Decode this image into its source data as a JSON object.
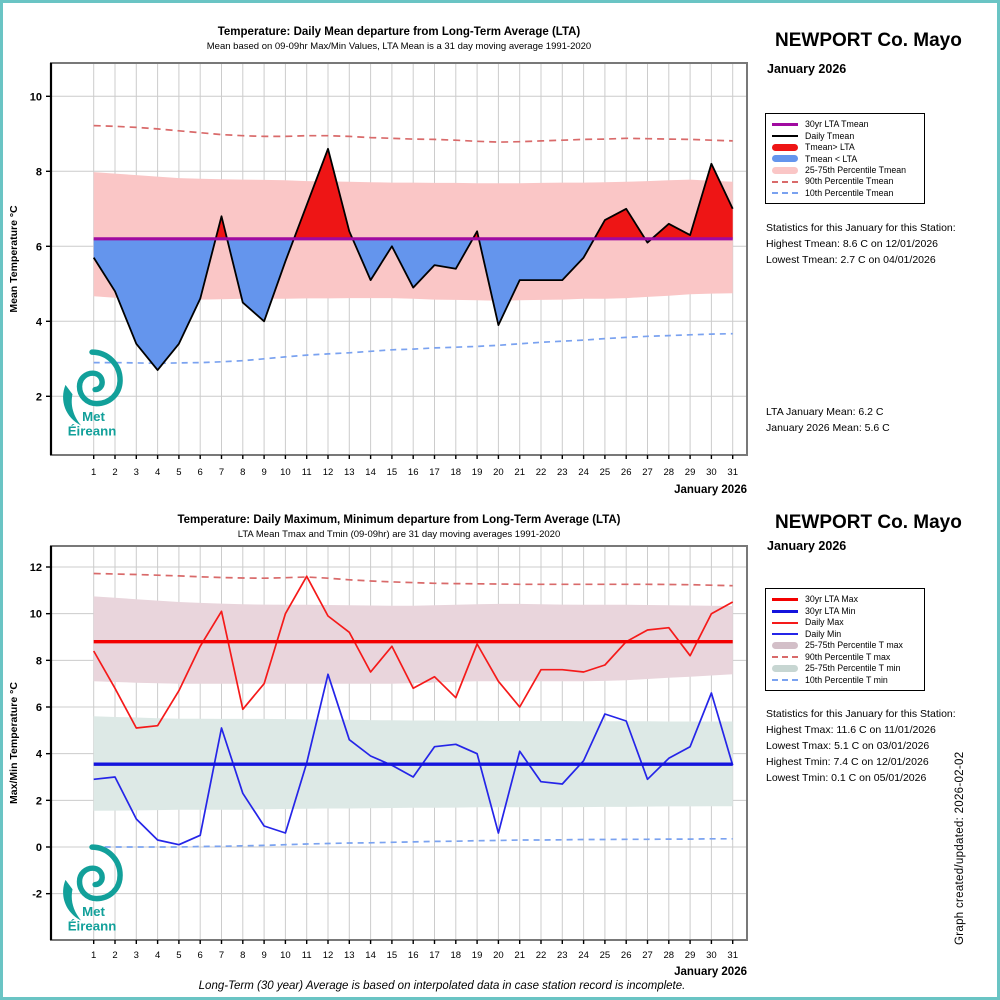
{
  "station": {
    "name": "NEWPORT Co. Mayo",
    "month": "January 2026"
  },
  "colors": {
    "border_teal": "#6ac4c4",
    "logo_teal": "#12a09a",
    "red_fill": "#ee1515",
    "blue_fill": "#6495ed",
    "pink_band": "#fac6c6",
    "mauve_band": "#e9d5dc",
    "tealgrey_band": "#dde9e6",
    "purple_lta": "#a00aa0",
    "lta_red": "#f30000",
    "lta_blue": "#1414dd",
    "daily_max_red": "#f51a1a",
    "daily_min_blue": "#2525e8",
    "dash_red": "#d96a6a",
    "dash_blue": "#7aa2f0",
    "grid": "#cccccc",
    "plot_border": "#787878",
    "legend_mauve": "#d3bfc8",
    "legend_tealgrey": "#c7d6d2"
  },
  "logo": {
    "line1": "Met",
    "line2": "Éireann"
  },
  "footer": {
    "note": "Long-Term (30 year) Average is based on interpolated data in case station record is incomplete.",
    "created": "Graph created/updated:  2026-02-02"
  },
  "chart_data": [
    {
      "type": "line+area",
      "title": "Temperature: Daily Mean departure from Long-Term Average (LTA)",
      "subtitle": "Mean based on 09-09hr Max/Min Values, LTA Mean is a 31 day moving average 1991-2020",
      "ylabel": "Mean Temperature °C",
      "xlabel": "January 2026",
      "ylim": [
        0.4,
        10.9
      ],
      "yticks": [
        2,
        4,
        6,
        8,
        10
      ],
      "days": [
        1,
        2,
        3,
        4,
        5,
        6,
        7,
        8,
        9,
        10,
        11,
        12,
        13,
        14,
        15,
        16,
        17,
        18,
        19,
        20,
        21,
        22,
        23,
        24,
        25,
        26,
        27,
        28,
        29,
        30,
        31
      ],
      "lta_tmean": 6.2,
      "daily_tmean": [
        5.7,
        4.8,
        3.4,
        2.7,
        3.4,
        4.6,
        6.8,
        4.5,
        4.0,
        5.6,
        7.1,
        8.6,
        6.4,
        5.1,
        6.0,
        4.9,
        5.5,
        5.4,
        6.4,
        3.9,
        5.1,
        5.1,
        5.1,
        5.7,
        6.7,
        7.0,
        6.1,
        6.6,
        6.3,
        8.2,
        7.0
      ],
      "p25_75_upper": [
        7.98,
        7.94,
        7.9,
        7.86,
        7.82,
        7.8,
        7.79,
        7.78,
        7.77,
        7.76,
        7.74,
        7.73,
        7.72,
        7.71,
        7.7,
        7.7,
        7.69,
        7.69,
        7.68,
        7.68,
        7.68,
        7.69,
        7.7,
        7.7,
        7.71,
        7.72,
        7.74,
        7.76,
        7.78,
        7.75,
        7.72
      ],
      "p25_75_lower": [
        4.67,
        4.63,
        4.6,
        4.58,
        4.57,
        4.58,
        4.59,
        4.6,
        4.6,
        4.6,
        4.61,
        4.61,
        4.62,
        4.62,
        4.62,
        4.6,
        4.58,
        4.57,
        4.56,
        4.55,
        4.56,
        4.57,
        4.58,
        4.6,
        4.6,
        4.62,
        4.65,
        4.68,
        4.72,
        4.74,
        4.75
      ],
      "p90": [
        9.22,
        9.2,
        9.17,
        9.13,
        9.08,
        9.03,
        8.98,
        8.95,
        8.93,
        8.93,
        8.95,
        8.95,
        8.93,
        8.9,
        8.88,
        8.86,
        8.85,
        8.83,
        8.8,
        8.78,
        8.79,
        8.81,
        8.83,
        8.85,
        8.86,
        8.88,
        8.87,
        8.86,
        8.85,
        8.83,
        8.81
      ],
      "p10": [
        2.9,
        2.9,
        2.89,
        2.88,
        2.89,
        2.9,
        2.92,
        2.95,
        3.0,
        3.05,
        3.1,
        3.13,
        3.16,
        3.2,
        3.24,
        3.26,
        3.29,
        3.31,
        3.33,
        3.36,
        3.4,
        3.44,
        3.47,
        3.5,
        3.54,
        3.57,
        3.6,
        3.62,
        3.64,
        3.66,
        3.67
      ],
      "legend": [
        {
          "label": "30yr LTA Tmean",
          "style": "lta",
          "color": "#a00aa0"
        },
        {
          "label": "Daily Tmean",
          "style": "line",
          "color": "#000000"
        },
        {
          "label": "Tmean> LTA",
          "style": "thick",
          "color": "#ee1515"
        },
        {
          "label": "Tmean < LTA",
          "style": "thick",
          "color": "#6495ed"
        },
        {
          "label": "25-75th Percentile Tmean",
          "style": "thick",
          "color": "#fac6c6"
        },
        {
          "label": "90th Percentile Tmean",
          "style": "dash",
          "color": "#d96a6a"
        },
        {
          "label": "10th Percentile Tmean",
          "style": "dash",
          "color": "#7aa2f0"
        }
      ],
      "stats_header": "Statistics for this January for this Station:",
      "stats": [
        "Highest Tmean: 8.6 C on 12/01/2026",
        "Lowest Tmean: 2.7 C on 04/01/2026"
      ],
      "means": [
        "LTA January Mean: 6.2 C",
        "January 2026 Mean: 5.6 C"
      ]
    },
    {
      "type": "line",
      "title": "Temperature: Daily Maximum, Minimum departure from Long-Term Average (LTA)",
      "subtitle": "LTA Mean Tmax and Tmin (09-09hr) are 31 day moving averages 1991-2020",
      "ylabel": "Max/Min Temperature °C",
      "xlabel": "January 2026",
      "ylim": [
        -4.0,
        12.9
      ],
      "yticks": [
        -2,
        0,
        2,
        4,
        6,
        8,
        10,
        12
      ],
      "days": [
        1,
        2,
        3,
        4,
        5,
        6,
        7,
        8,
        9,
        10,
        11,
        12,
        13,
        14,
        15,
        16,
        17,
        18,
        19,
        20,
        21,
        22,
        23,
        24,
        25,
        26,
        27,
        28,
        29,
        30,
        31
      ],
      "lta_tmax": 8.8,
      "lta_tmin": 3.55,
      "daily_tmax": [
        8.4,
        6.8,
        5.1,
        5.2,
        6.7,
        8.6,
        10.1,
        5.9,
        7.0,
        10.0,
        11.6,
        9.9,
        9.2,
        7.5,
        8.6,
        6.8,
        7.3,
        6.4,
        8.7,
        7.1,
        6.0,
        7.6,
        7.6,
        7.5,
        7.8,
        8.8,
        9.3,
        9.4,
        8.2,
        10.0,
        10.5
      ],
      "daily_tmin": [
        2.9,
        3.0,
        1.2,
        0.3,
        0.1,
        0.5,
        5.1,
        2.3,
        0.9,
        0.6,
        3.6,
        7.4,
        4.6,
        3.9,
        3.5,
        3.0,
        4.3,
        4.4,
        4.0,
        0.6,
        4.1,
        2.8,
        2.7,
        3.7,
        5.7,
        5.4,
        2.9,
        3.8,
        4.3,
        6.6,
        3.5
      ],
      "tmax_p25_75_upper": [
        10.74,
        10.68,
        10.62,
        10.56,
        10.5,
        10.46,
        10.43,
        10.4,
        10.39,
        10.38,
        10.38,
        10.37,
        10.36,
        10.35,
        10.34,
        10.34,
        10.36,
        10.38,
        10.4,
        10.42,
        10.42,
        10.4,
        10.39,
        10.38,
        10.38,
        10.38,
        10.37,
        10.36,
        10.35,
        10.34,
        10.33
      ],
      "tmax_p25_75_lower": [
        7.1,
        7.07,
        7.04,
        7.02,
        7.0,
        7.0,
        7.0,
        7.0,
        7.0,
        7.0,
        7.0,
        7.0,
        7.0,
        7.0,
        7.0,
        7.02,
        7.05,
        7.08,
        7.1,
        7.1,
        7.1,
        7.1,
        7.1,
        7.1,
        7.12,
        7.15,
        7.2,
        7.25,
        7.3,
        7.35,
        7.4
      ],
      "tmin_p25_75_upper": [
        5.6,
        5.57,
        5.55,
        5.52,
        5.5,
        5.5,
        5.49,
        5.49,
        5.49,
        5.48,
        5.47,
        5.46,
        5.45,
        5.44,
        5.43,
        5.42,
        5.42,
        5.41,
        5.41,
        5.4,
        5.4,
        5.4,
        5.4,
        5.39,
        5.39,
        5.39,
        5.39,
        5.38,
        5.38,
        5.38,
        5.38
      ],
      "tmin_p25_75_lower": [
        1.55,
        1.56,
        1.57,
        1.58,
        1.6,
        1.6,
        1.6,
        1.6,
        1.62,
        1.63,
        1.64,
        1.65,
        1.65,
        1.66,
        1.67,
        1.68,
        1.68,
        1.69,
        1.7,
        1.7,
        1.7,
        1.7,
        1.7,
        1.71,
        1.72,
        1.72,
        1.73,
        1.74,
        1.74,
        1.75,
        1.75
      ],
      "tmax_p90": [
        11.72,
        11.7,
        11.68,
        11.65,
        11.62,
        11.58,
        11.55,
        11.53,
        11.52,
        11.54,
        11.57,
        11.52,
        11.45,
        11.4,
        11.36,
        11.33,
        11.3,
        11.29,
        11.28,
        11.27,
        11.26,
        11.26,
        11.26,
        11.26,
        11.26,
        11.26,
        11.26,
        11.25,
        11.24,
        11.22,
        11.2
      ],
      "tmin_p10": [
        0.0,
        0.0,
        0.0,
        0.0,
        0.0,
        0.02,
        0.03,
        0.05,
        0.07,
        0.1,
        0.13,
        0.15,
        0.17,
        0.18,
        0.2,
        0.22,
        0.24,
        0.25,
        0.27,
        0.28,
        0.3,
        0.3,
        0.31,
        0.32,
        0.32,
        0.33,
        0.33,
        0.34,
        0.34,
        0.35,
        0.35
      ],
      "legend": [
        {
          "label": "30yr LTA Max",
          "style": "lta",
          "color": "#f30000"
        },
        {
          "label": "30yr LTA Min",
          "style": "lta",
          "color": "#1414dd"
        },
        {
          "label": "Daily Max",
          "style": "line",
          "color": "#f51a1a"
        },
        {
          "label": "Daily Min",
          "style": "line",
          "color": "#2525e8"
        },
        {
          "label": "25-75th Percentile T max",
          "style": "thick",
          "color": "#d3bfc8"
        },
        {
          "label": "90th Percentile T max",
          "style": "dash",
          "color": "#d96a6a"
        },
        {
          "label": "25-75th Percentile T min",
          "style": "thick",
          "color": "#c7d6d2"
        },
        {
          "label": "10th Percentile T min",
          "style": "dash",
          "color": "#7aa2f0"
        }
      ],
      "stats_header": "Statistics for this January for this Station:",
      "stats": [
        "Highest Tmax: 11.6 C on 11/01/2026",
        "Lowest Tmax: 5.1 C on 03/01/2026",
        "Highest Tmin: 7.4 C on 12/01/2026",
        "Lowest Tmin: 0.1 C on 05/01/2026"
      ]
    }
  ]
}
